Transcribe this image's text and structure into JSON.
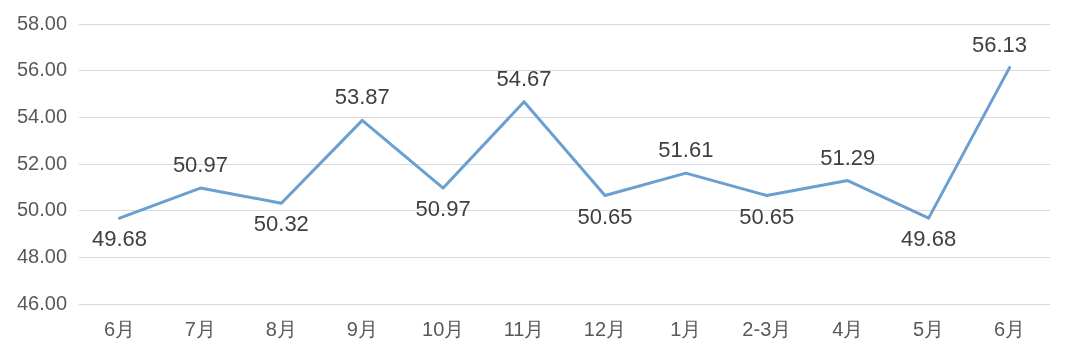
{
  "chart_data": {
    "type": "line",
    "categories": [
      "6月",
      "7月",
      "8月",
      "9月",
      "10月",
      "11月",
      "12月",
      "1月",
      "2-3月",
      "4月",
      "5月",
      "6月"
    ],
    "series": [
      {
        "color": "#6a9fcf",
        "values": [
          49.68,
          50.97,
          50.32,
          53.87,
          50.97,
          54.67,
          50.65,
          51.61,
          50.65,
          51.29,
          49.68,
          56.13
        ]
      }
    ],
    "ylim": [
      46,
      58
    ],
    "yticks": [
      {
        "value": 46,
        "label": "46.00"
      },
      {
        "value": 48,
        "label": "48.00"
      },
      {
        "value": 50,
        "label": "50.00"
      },
      {
        "value": 52,
        "label": "52.00"
      },
      {
        "value": 54,
        "label": "54.00"
      },
      {
        "value": 56,
        "label": "56.00"
      },
      {
        "value": 58,
        "label": "58.00"
      }
    ],
    "grid": "y",
    "legend": false,
    "marker": "none",
    "line_style": "solid",
    "data_labels": true
  }
}
